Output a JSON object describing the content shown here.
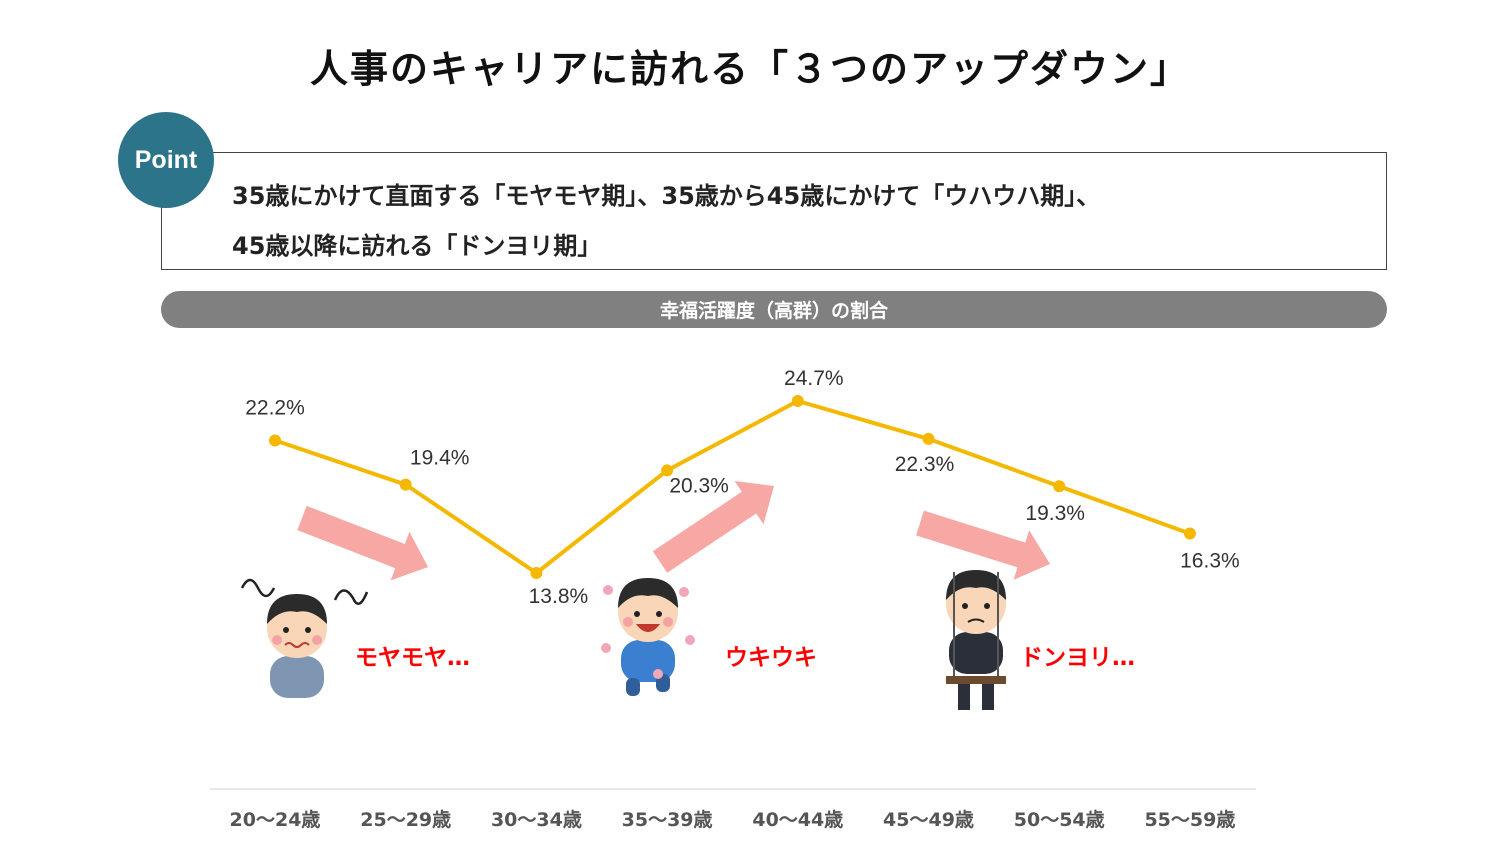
{
  "title": "人事のキャリアに訪れる「３つのアップダウン」",
  "point": {
    "badge": "Point",
    "line1": "35歳にかけて直面する「モヤモヤ期」、35歳から45歳にかけて「ウハウハ期」、",
    "line2": "45歳以降に訪れる「ドンヨリ期」"
  },
  "colors": {
    "line": "#f5b800",
    "arrow": "#f8a8a4",
    "badge": "#2c7489",
    "bar": "#808080",
    "mood": "#ff0000"
  },
  "moods": [
    {
      "label": "モヤモヤ…",
      "icon": "confused-man-icon"
    },
    {
      "label": "ウキウキ",
      "icon": "happy-man-icon"
    },
    {
      "label": "ドンヨリ…",
      "icon": "gloomy-man-on-swing-icon"
    }
  ],
  "chart_data": {
    "type": "line",
    "title": "幸福活躍度（高群）の割合",
    "categories": [
      "20～24歳",
      "25～29歳",
      "30～34歳",
      "35～39歳",
      "40～44歳",
      "45～49歳",
      "50～54歳",
      "55～59歳"
    ],
    "values": [
      22.2,
      19.4,
      13.8,
      20.3,
      24.7,
      22.3,
      19.3,
      16.3
    ],
    "labels": [
      "22.2%",
      "19.4%",
      "13.8%",
      "20.3%",
      "24.7%",
      "22.3%",
      "19.3%",
      "16.3%"
    ],
    "ylim": [
      10,
      26
    ],
    "grid": false,
    "legend": "none"
  }
}
